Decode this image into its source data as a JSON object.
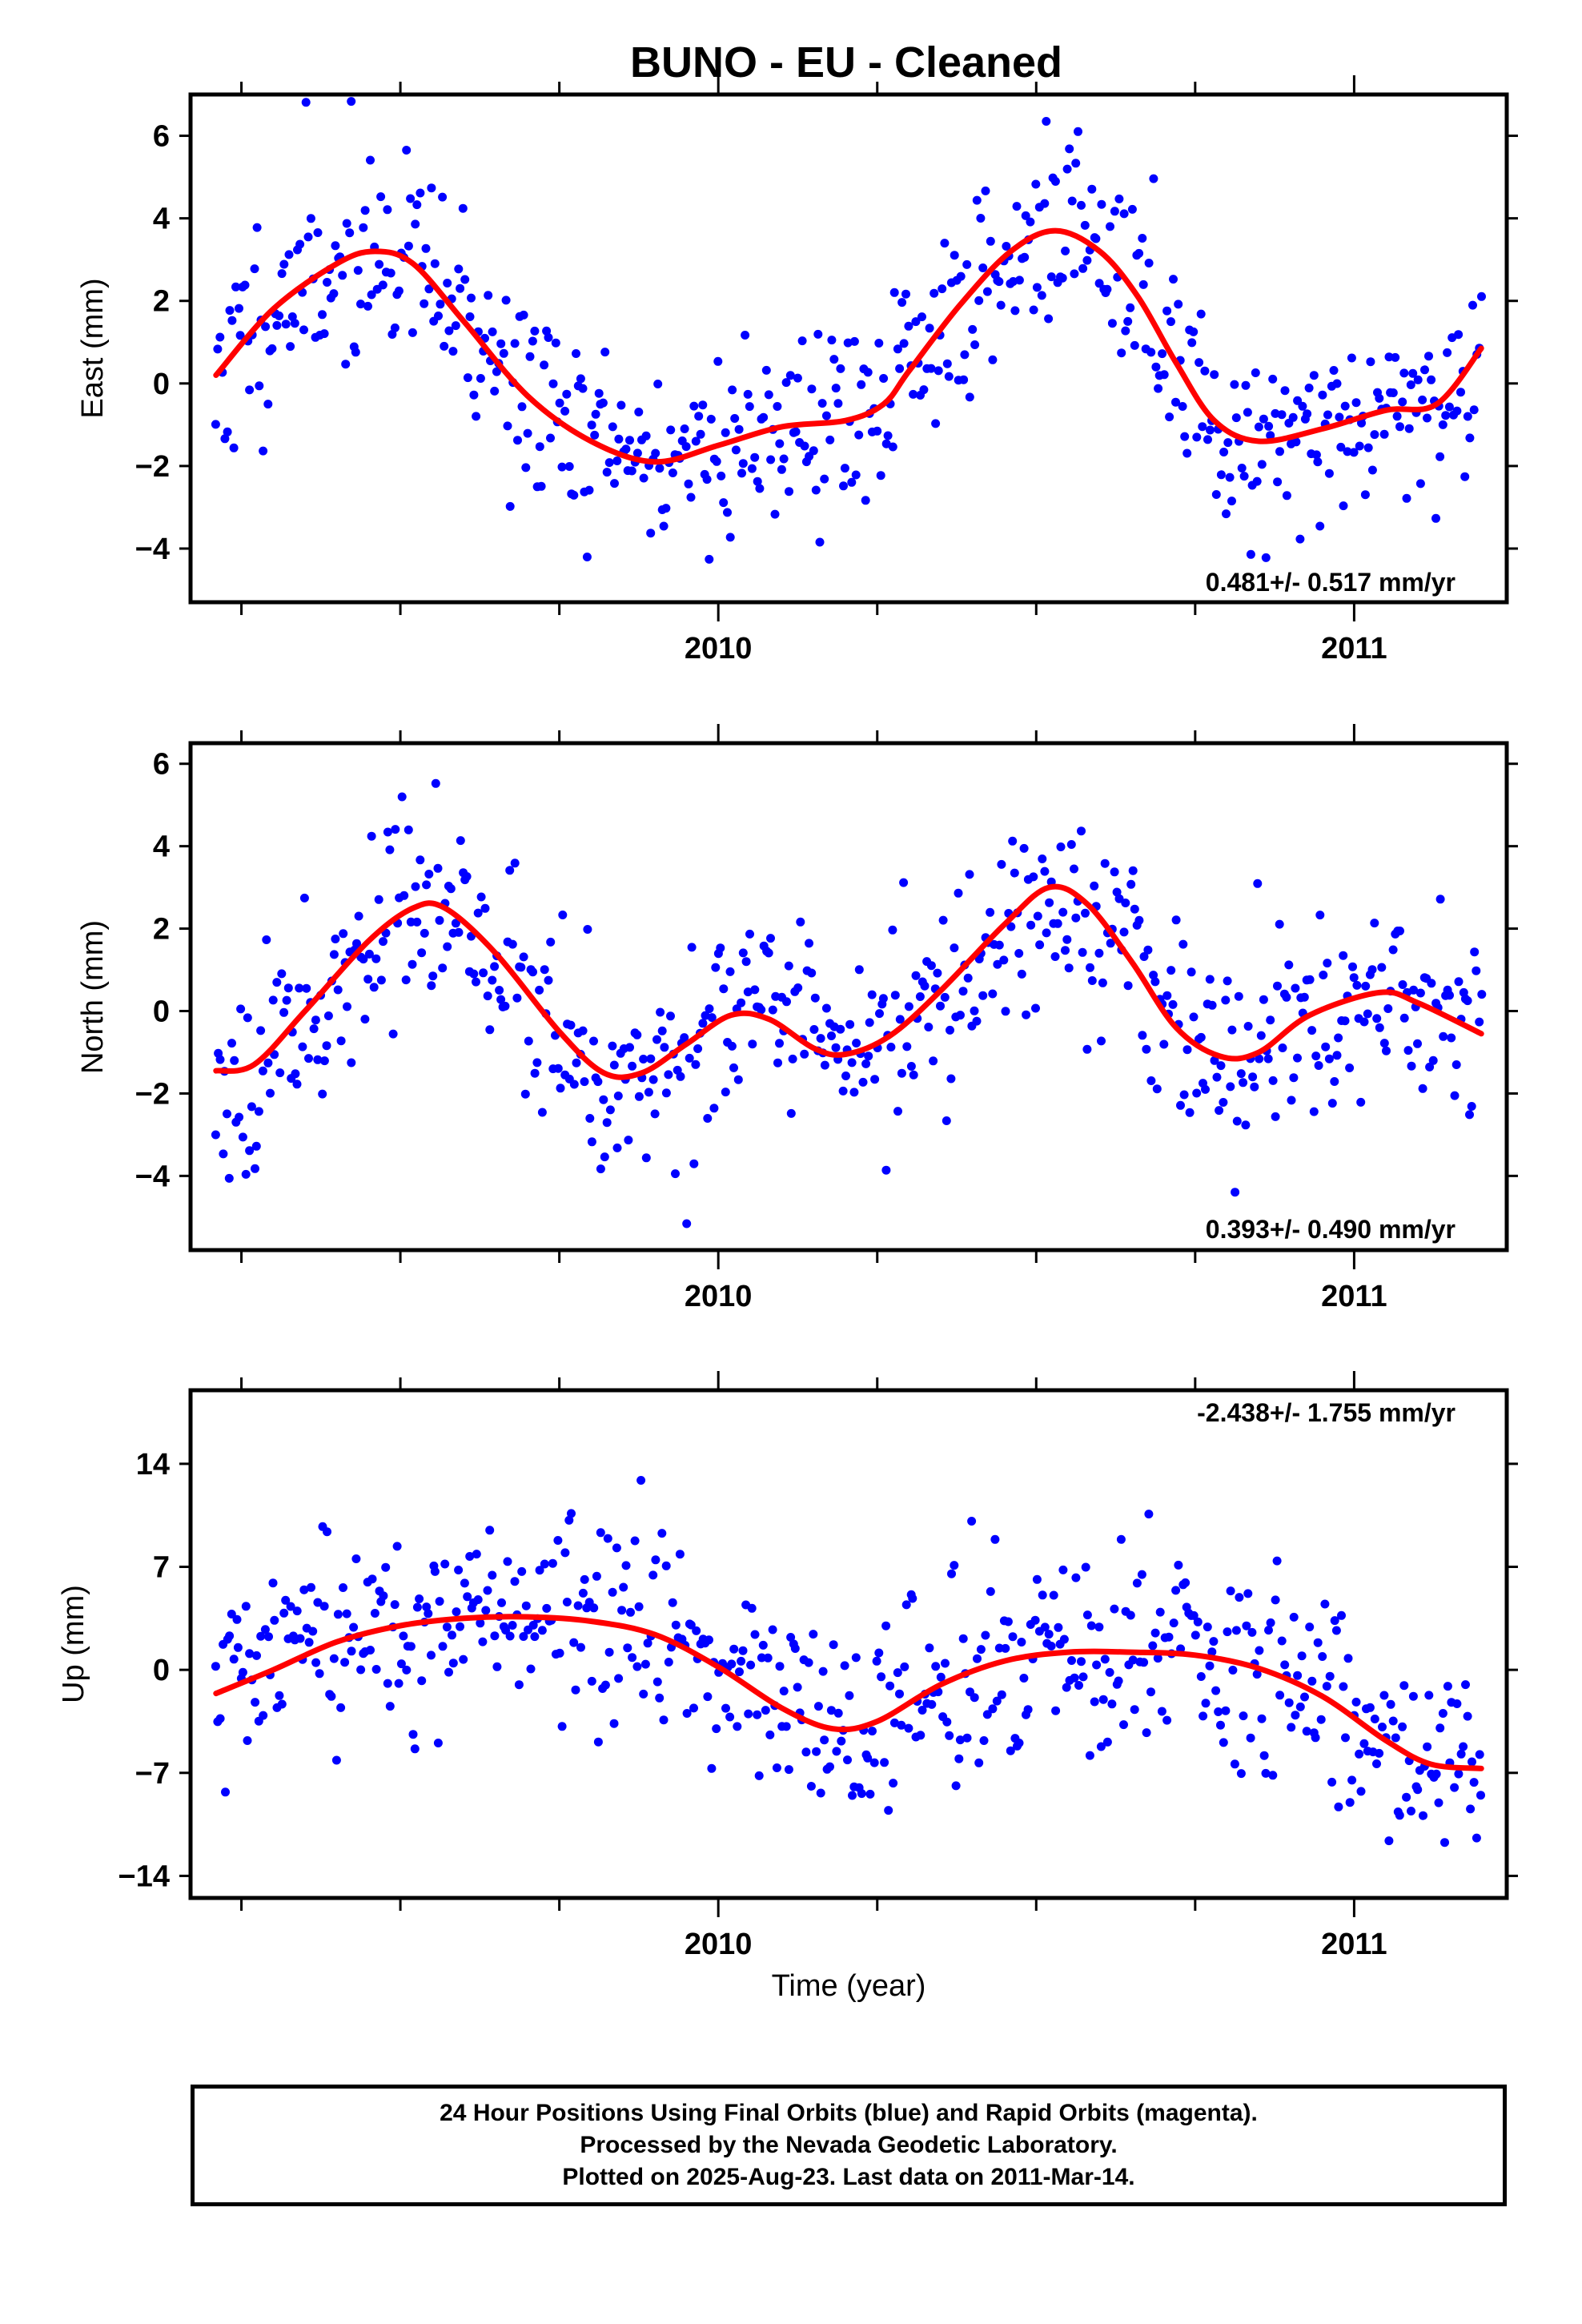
{
  "title": "BUNO  - EU - Cleaned",
  "colors": {
    "data_points": "#0000ff",
    "model_curve": "#ff0000",
    "frame": "#000000"
  },
  "xlabel": "Time (year)",
  "footer": {
    "line1": "24 Hour Positions Using Final Orbits (blue) and Rapid Orbits (magenta).",
    "line2": "Processed by the Nevada Geodetic Laboratory.",
    "line3": "Plotted on 2025-Aug-23. Last data on 2011-Mar-14."
  },
  "chart_data": [
    {
      "type": "scatter",
      "ylabel": "East (mm)",
      "rate_label": "0.481+/- 0.517 mm/yr",
      "xlim": [
        2009.17,
        2011.24
      ],
      "ylim": [
        -5.3,
        7.0
      ],
      "xticks": [
        2010,
        2011
      ],
      "xtick_labels": [
        "2010",
        "2011"
      ],
      "yticks": [
        -4,
        -2,
        0,
        2,
        4,
        6
      ],
      "ytick_labels": [
        "−4",
        "−2",
        "0",
        "2",
        "4",
        "6"
      ],
      "grid": false,
      "series": [
        {
          "type": "scatter",
          "color": "#0000ff",
          "x_start": 2009.21,
          "x_end": 2011.2,
          "count": 560,
          "noise": 1.25,
          "seed": 11
        },
        {
          "type": "line",
          "color": "#ff0000",
          "points": [
            [
              2009.21,
              0.2
            ],
            [
              2009.3,
              1.8
            ],
            [
              2009.4,
              2.9
            ],
            [
              2009.46,
              3.2
            ],
            [
              2009.52,
              2.9
            ],
            [
              2009.6,
              1.5
            ],
            [
              2009.7,
              -0.3
            ],
            [
              2009.8,
              -1.4
            ],
            [
              2009.9,
              -1.9
            ],
            [
              2010.0,
              -1.5
            ],
            [
              2010.1,
              -1.05
            ],
            [
              2010.2,
              -0.9
            ],
            [
              2010.26,
              -0.5
            ],
            [
              2010.3,
              0.3
            ],
            [
              2010.38,
              1.9
            ],
            [
              2010.46,
              3.2
            ],
            [
              2010.53,
              3.7
            ],
            [
              2010.6,
              3.2
            ],
            [
              2010.66,
              2.1
            ],
            [
              2010.72,
              0.5
            ],
            [
              2010.78,
              -0.9
            ],
            [
              2010.85,
              -1.4
            ],
            [
              2010.95,
              -1.1
            ],
            [
              2011.05,
              -0.65
            ],
            [
              2011.13,
              -0.5
            ],
            [
              2011.2,
              0.85
            ]
          ]
        }
      ]
    },
    {
      "type": "scatter",
      "ylabel": "North (mm)",
      "rate_label": "0.393+/- 0.490 mm/yr",
      "xlim": [
        2009.17,
        2011.24
      ],
      "ylim": [
        -5.8,
        6.5
      ],
      "xticks": [
        2010,
        2011
      ],
      "xtick_labels": [
        "2010",
        "2011"
      ],
      "yticks": [
        -4,
        -2,
        0,
        2,
        4,
        6
      ],
      "ytick_labels": [
        "−4",
        "−2",
        "0",
        "2",
        "4",
        "6"
      ],
      "grid": false,
      "series": [
        {
          "type": "scatter",
          "color": "#0000ff",
          "x_start": 2009.21,
          "x_end": 2011.2,
          "count": 560,
          "noise": 1.2,
          "seed": 23
        },
        {
          "type": "line",
          "color": "#ff0000",
          "points": [
            [
              2009.21,
              -1.45
            ],
            [
              2009.27,
              -1.3
            ],
            [
              2009.35,
              0.0
            ],
            [
              2009.45,
              1.7
            ],
            [
              2009.52,
              2.5
            ],
            [
              2009.57,
              2.5
            ],
            [
              2009.65,
              1.4
            ],
            [
              2009.75,
              -0.5
            ],
            [
              2009.82,
              -1.5
            ],
            [
              2009.88,
              -1.5
            ],
            [
              2009.95,
              -0.8
            ],
            [
              2010.02,
              -0.1
            ],
            [
              2010.08,
              -0.2
            ],
            [
              2010.15,
              -0.9
            ],
            [
              2010.2,
              -1.05
            ],
            [
              2010.27,
              -0.6
            ],
            [
              2010.35,
              0.5
            ],
            [
              2010.45,
              2.1
            ],
            [
              2010.52,
              3.0
            ],
            [
              2010.58,
              2.6
            ],
            [
              2010.65,
              1.2
            ],
            [
              2010.72,
              -0.4
            ],
            [
              2010.79,
              -1.1
            ],
            [
              2010.85,
              -1.0
            ],
            [
              2010.93,
              -0.1
            ],
            [
              2011.04,
              0.45
            ],
            [
              2011.1,
              0.2
            ],
            [
              2011.2,
              -0.55
            ]
          ]
        }
      ]
    },
    {
      "type": "scatter",
      "ylabel": "Up (mm)",
      "rate_label": "-2.438+/- 1.755 mm/yr",
      "xlim": [
        2009.17,
        2011.24
      ],
      "ylim": [
        -15.5,
        19.0
      ],
      "xticks": [
        2010,
        2011
      ],
      "xtick_labels": [
        "2010",
        "2011"
      ],
      "yticks": [
        -14,
        -7,
        0,
        7,
        14
      ],
      "ytick_labels": [
        "−14",
        "−7",
        "0",
        "7",
        "14"
      ],
      "grid": false,
      "series": [
        {
          "type": "scatter",
          "color": "#0000ff",
          "x_start": 2009.21,
          "x_end": 2011.2,
          "count": 560,
          "noise": 3.4,
          "seed": 37
        },
        {
          "type": "line",
          "color": "#ff0000",
          "points": [
            [
              2009.21,
              -1.6
            ],
            [
              2009.3,
              0.0
            ],
            [
              2009.4,
              1.9
            ],
            [
              2009.5,
              3.0
            ],
            [
              2009.6,
              3.5
            ],
            [
              2009.7,
              3.6
            ],
            [
              2009.8,
              3.3
            ],
            [
              2009.9,
              2.4
            ],
            [
              2010.0,
              0.2
            ],
            [
              2010.1,
              -2.6
            ],
            [
              2010.18,
              -4.0
            ],
            [
              2010.25,
              -3.5
            ],
            [
              2010.35,
              -1.0
            ],
            [
              2010.45,
              0.6
            ],
            [
              2010.55,
              1.2
            ],
            [
              2010.65,
              1.2
            ],
            [
              2010.75,
              1.0
            ],
            [
              2010.85,
              0.1
            ],
            [
              2010.95,
              -1.8
            ],
            [
              2011.05,
              -4.8
            ],
            [
              2011.12,
              -6.4
            ],
            [
              2011.2,
              -6.7
            ]
          ]
        }
      ]
    }
  ]
}
